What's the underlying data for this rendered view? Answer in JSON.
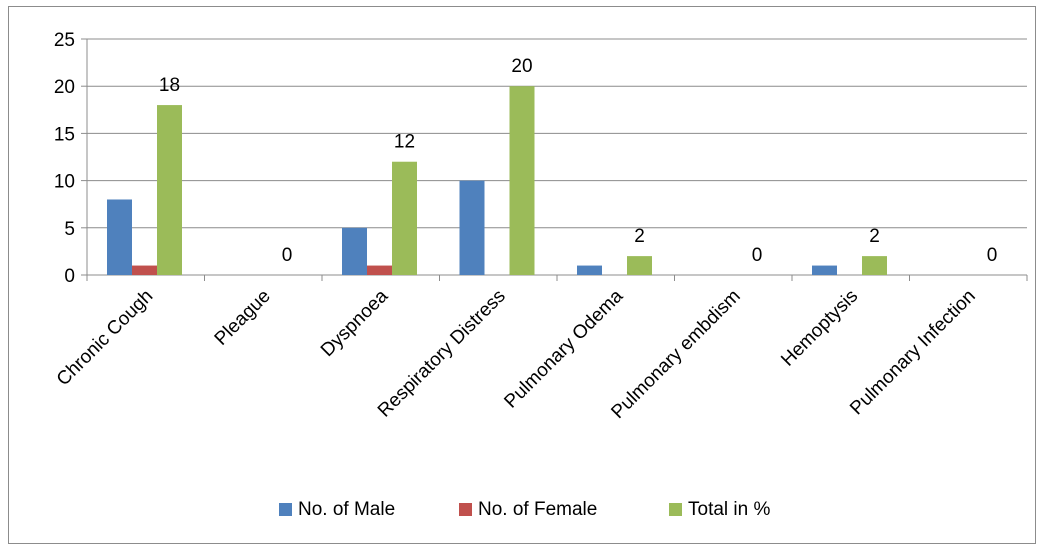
{
  "chart_data": {
    "type": "bar",
    "categories": [
      "Chronic Cough",
      "Pleague",
      "Dyspnoea",
      "Respiratory Distress",
      "Pulmonary Odema",
      "Pulmonary embdism",
      "Hemoptysis",
      "Pulmonary Infection"
    ],
    "series": [
      {
        "name": "No. of Male",
        "values": [
          8,
          0,
          5,
          10,
          1,
          0,
          1,
          0
        ],
        "color": "#4F81BD"
      },
      {
        "name": "No. of Female",
        "values": [
          1,
          0,
          1,
          0,
          0,
          0,
          0,
          0
        ],
        "color": "#C0504D"
      },
      {
        "name": "Total in %",
        "values": [
          18,
          0,
          12,
          20,
          2,
          0,
          2,
          0
        ],
        "color": "#9BBB59"
      }
    ],
    "data_labels": {
      "series": "Total in %",
      "values": [
        "18",
        "0",
        "12",
        "20",
        "2",
        "0",
        "2",
        "0"
      ]
    },
    "ylim": [
      0,
      25
    ],
    "yticks": [
      0,
      5,
      10,
      15,
      20,
      25
    ],
    "ytick_labels": [
      "0",
      "5",
      "10",
      "15",
      "20",
      "25"
    ],
    "grid": true,
    "legend_position": "bottom",
    "title": "",
    "xlabel": "",
    "ylabel": ""
  }
}
